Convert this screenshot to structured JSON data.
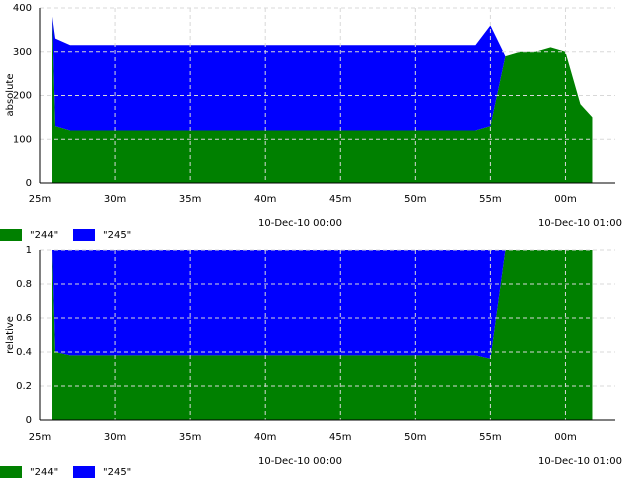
{
  "chart_data": [
    {
      "type": "stacked_area",
      "y_label": "absolute",
      "x": [
        25.8,
        26,
        27,
        28,
        29,
        30,
        31,
        32,
        33,
        34,
        35,
        36,
        37,
        38,
        39,
        40,
        41,
        42,
        43,
        44,
        45,
        46,
        47,
        48,
        49,
        50,
        51,
        52,
        53,
        54,
        55,
        56,
        57,
        58,
        59,
        60,
        61,
        61.8
      ],
      "series": [
        {
          "name": "\"244\"",
          "color": "#008000",
          "values": [
            380,
            130,
            120,
            120,
            120,
            120,
            120,
            120,
            120,
            120,
            120,
            120,
            120,
            120,
            120,
            120,
            120,
            120,
            120,
            120,
            120,
            120,
            120,
            120,
            120,
            120,
            120,
            120,
            120,
            120,
            130,
            290,
            300,
            300,
            310,
            300,
            180,
            150
          ]
        },
        {
          "name": "\"245\"",
          "color": "#0000ff",
          "values": [
            0,
            200,
            195,
            195,
            195,
            195,
            195,
            195,
            195,
            195,
            195,
            195,
            195,
            195,
            195,
            195,
            195,
            195,
            195,
            195,
            195,
            195,
            195,
            195,
            195,
            195,
            195,
            195,
            195,
            195,
            230,
            0,
            0,
            0,
            0,
            0,
            0,
            0
          ]
        }
      ],
      "xlim": [
        25,
        63.3
      ],
      "xticks": [
        {
          "value": 25,
          "label": "25m"
        },
        {
          "value": 30,
          "label": "30m"
        },
        {
          "value": 35,
          "label": "35m"
        },
        {
          "value": 40,
          "label": "40m"
        },
        {
          "value": 45,
          "label": "45m"
        },
        {
          "value": 50,
          "label": "50m"
        },
        {
          "value": 55,
          "label": "55m"
        },
        {
          "value": 60,
          "label": "00m"
        }
      ],
      "ylim": [
        0,
        400
      ],
      "yticks": [
        0,
        100,
        200,
        300,
        400
      ],
      "annotations": [
        "10-Dec-10 00:00",
        "10-Dec-10 01:00"
      ],
      "grid": true,
      "legend": "bottom"
    },
    {
      "type": "stacked_area",
      "y_label": "relative",
      "x": [
        25.8,
        26,
        27,
        28,
        29,
        30,
        31,
        32,
        33,
        34,
        35,
        36,
        37,
        38,
        39,
        40,
        41,
        42,
        43,
        44,
        45,
        46,
        47,
        48,
        49,
        50,
        51,
        52,
        53,
        54,
        55,
        56,
        57,
        58,
        59,
        60,
        61,
        61.8
      ],
      "series": [
        {
          "name": "\"244\"",
          "color": "#008000",
          "values": [
            1,
            0.4,
            0.38,
            0.38,
            0.38,
            0.38,
            0.38,
            0.38,
            0.38,
            0.38,
            0.38,
            0.38,
            0.38,
            0.38,
            0.38,
            0.38,
            0.38,
            0.38,
            0.38,
            0.38,
            0.38,
            0.38,
            0.38,
            0.38,
            0.38,
            0.38,
            0.38,
            0.38,
            0.38,
            0.38,
            0.36,
            1,
            1,
            1,
            1,
            1,
            1,
            1
          ]
        },
        {
          "name": "\"245\"",
          "color": "#0000ff",
          "values": [
            0,
            0.6,
            0.62,
            0.62,
            0.62,
            0.62,
            0.62,
            0.62,
            0.62,
            0.62,
            0.62,
            0.62,
            0.62,
            0.62,
            0.62,
            0.62,
            0.62,
            0.62,
            0.62,
            0.62,
            0.62,
            0.62,
            0.62,
            0.62,
            0.62,
            0.62,
            0.62,
            0.62,
            0.62,
            0.62,
            0.64,
            0,
            0,
            0,
            0,
            0,
            0,
            0
          ]
        }
      ],
      "xlim": [
        25,
        63.3
      ],
      "xticks": [
        {
          "value": 25,
          "label": "25m"
        },
        {
          "value": 30,
          "label": "30m"
        },
        {
          "value": 35,
          "label": "35m"
        },
        {
          "value": 40,
          "label": "40m"
        },
        {
          "value": 45,
          "label": "45m"
        },
        {
          "value": 50,
          "label": "50m"
        },
        {
          "value": 55,
          "label": "55m"
        },
        {
          "value": 60,
          "label": "00m"
        }
      ],
      "ylim": [
        0,
        1
      ],
      "yticks": [
        0,
        0.2,
        0.4,
        0.6,
        0.8,
        1
      ],
      "annotations": [
        "10-Dec-10 00:00",
        "10-Dec-10 01:00"
      ],
      "grid": true,
      "legend": "bottom"
    }
  ]
}
